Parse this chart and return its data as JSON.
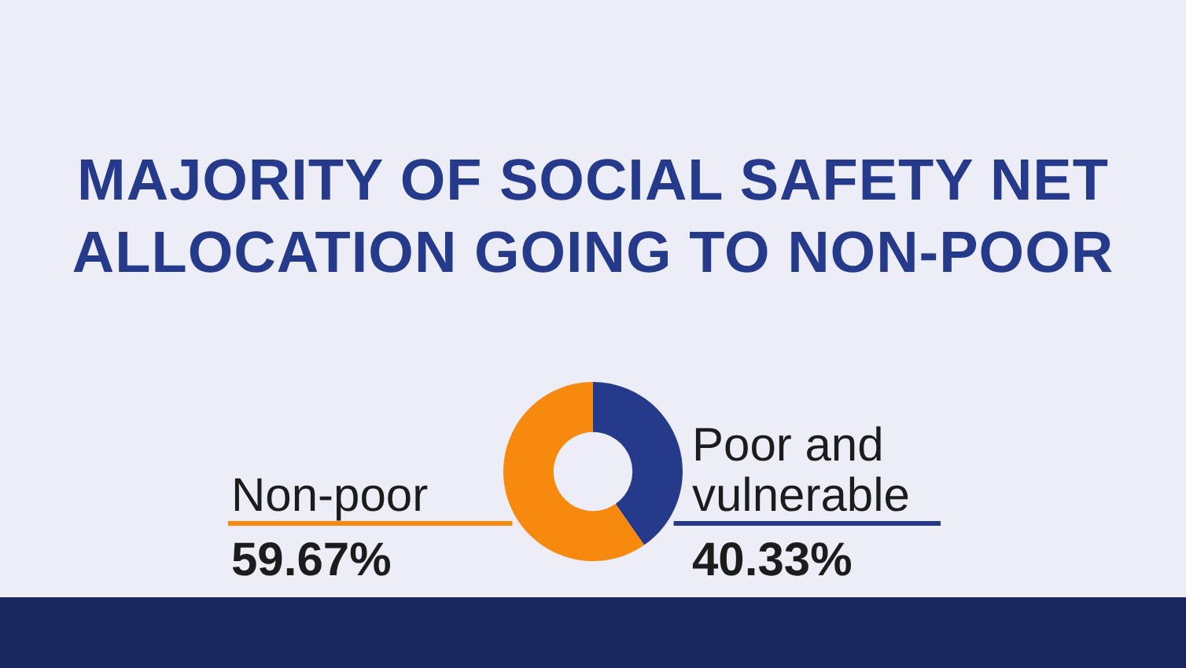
{
  "chart_data": {
    "type": "donut",
    "title": "MAJORITY OF SOCIAL SAFETY NET ALLOCATION GOING TO NON-POOR",
    "categories": [
      "Poor and vulnerable",
      "Non-poor"
    ],
    "values": [
      40.33,
      59.67
    ],
    "colors": [
      "#253a8a",
      "#f7890f"
    ],
    "value_labels": [
      "40.33%",
      "59.67%"
    ],
    "legend": false
  }
}
